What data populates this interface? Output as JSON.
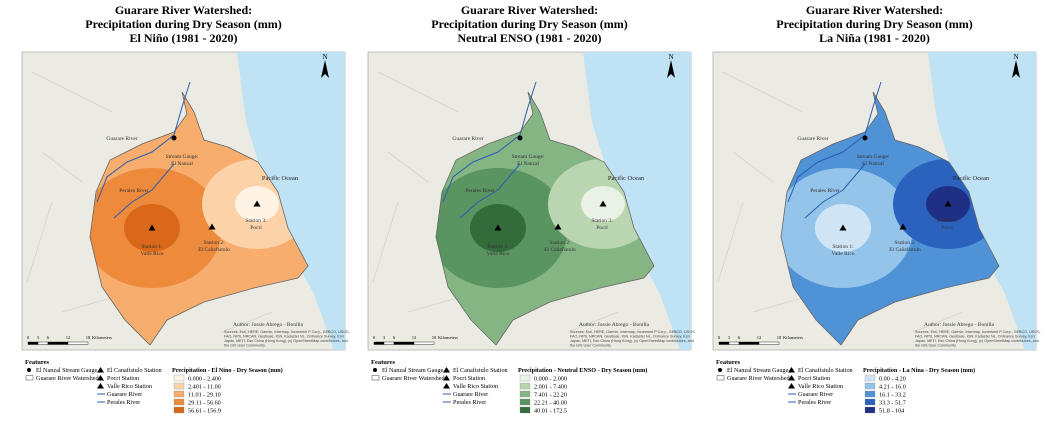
{
  "panels": [
    {
      "title": [
        "Guarare River Watershed:",
        "Precipitation during Dry Season (mm)",
        "El Niño (1981 - 2020)"
      ],
      "map": {
        "north": "N",
        "river_label": "Guarare River",
        "gauge_label": [
          "Stream Gauge:",
          "El Nanzal"
        ],
        "perales_label": "Perales River",
        "pocri_label": [
          "Station 3:",
          "Pocri"
        ],
        "valle_label": [
          "Station 1:",
          "Valle Rico"
        ],
        "canafistulo_label": [
          "Station 2:",
          "El Cañafistulo"
        ],
        "ocean_label": "Pacific Ocean",
        "author": "Author: Jossie Abrego - Bonilla",
        "sources": [
          "Sources: Esri, HERE, Garmin, Intermap, increment P Corp., GEBCO, USGS,",
          "FAO, NPS, NRCAN, GeoBase, IGN, Kadaster NL, Ordnance Survey, Esri",
          "Japan, METI, Esri China (Hong Kong), (c) OpenStreetMap contributors, and",
          "the GIS User Community"
        ],
        "scale": [
          "0",
          "3",
          "6",
          "12",
          "18",
          "Kilometers"
        ]
      },
      "legend": {
        "heading": "Features",
        "items": [
          "El Nanzal Stream Gauge",
          "Guarare River Watershed",
          "El Canafistulo Station",
          "Pocri Station",
          "Valle Rico Station",
          "Guarare River",
          "Perales River"
        ],
        "title": "Precipitation - El Nino - Dry Season (mm)",
        "classes": [
          {
            "label": "0.000 - 2.400",
            "color": "#fff3e6"
          },
          {
            "label": "2.401 - 11.00",
            "color": "#fcd3a8"
          },
          {
            "label": "11.01 - 29.10",
            "color": "#f6ad6d"
          },
          {
            "label": "29.11 - 56.60",
            "color": "#ee8a3c"
          },
          {
            "label": "56.61 - 156.9",
            "color": "#d9681a"
          }
        ]
      }
    },
    {
      "title": [
        "Guarare River Watershed:",
        "Precipitation during Dry Season (mm)",
        "Neutral ENSO (1981 - 2020)"
      ],
      "map": {
        "north": "N",
        "river_label": "Guarare River",
        "gauge_label": [
          "Stream Gauge:",
          "El Nanzal"
        ],
        "perales_label": "Perales River",
        "pocri_label": [
          "Station 3:",
          "Pocri"
        ],
        "valle_label": [
          "Station 1:",
          "Valle Rico"
        ],
        "canafistulo_label": [
          "Station 2:",
          "El Cañafistulo"
        ],
        "ocean_label": "Pacific Ocean",
        "author": "Author: Jossie Abrego - Bonilla",
        "sources": [
          "Sources: Esri, HERE, Garmin, Intermap, increment P Corp., GEBCO, USGS,",
          "FAO, NPS, NRCAN, GeoBase, IGN, Kadaster NL, Ordnance Survey, Esri",
          "Japan, METI, Esri China (Hong Kong), (c) OpenStreetMap contributors, and",
          "the GIS User Community"
        ],
        "scale": [
          "0",
          "3",
          "6",
          "12",
          "18",
          "Kilometers"
        ]
      },
      "legend": {
        "heading": "Features",
        "items": [
          "El Nanzal Stream Gauge",
          "Guarare River Watershed",
          "El Canafistulo Station",
          "Pocri Station",
          "Valle Rico Station",
          "Guarare River",
          "Perales River"
        ],
        "title": "Precipitation - Neutral ENSO - Dry Season (mm)",
        "classes": [
          {
            "label": "0.000 - 2.000",
            "color": "#e9f2e5"
          },
          {
            "label": "2.001 - 7.400",
            "color": "#b9d6b1"
          },
          {
            "label": "7.401 - 22.20",
            "color": "#86b584"
          },
          {
            "label": "22.21 - 40.00",
            "color": "#5a9460"
          },
          {
            "label": "40.01 - 172.5",
            "color": "#336b3b"
          }
        ]
      }
    },
    {
      "title": [
        "Guarare River Watershed:",
        "Precipitation during Dry Season (mm)",
        "La Niña (1981 - 2020)"
      ],
      "map": {
        "north": "N",
        "river_label": "Guarare River",
        "gauge_label": [
          "Stream Gauge:",
          "El Nanzal"
        ],
        "perales_label": "Perales River",
        "pocri_label": [
          "Station 3:",
          "Pocri"
        ],
        "valle_label": [
          "Station 1:",
          "Valle Rico"
        ],
        "canafistulo_label": [
          "Station 2:",
          "El Cañafistulo"
        ],
        "ocean_label": "Pacific Ocean",
        "author": "Author: Jossie Abrego - Bonilla",
        "sources": [
          "Sources: Esri, HERE, Garmin, Intermap, increment P Corp., GEBCO, USGS,",
          "FAO, NPS, NRCAN, GeoBase, IGN, Kadaster NL, Ordnance Survey, Esri",
          "Japan, METI, Esri China (Hong Kong), (c) OpenStreetMap contributors, and",
          "the GIS User Community"
        ],
        "scale": [
          "0",
          "3",
          "6",
          "12",
          "18",
          "Kilometers"
        ]
      },
      "legend": {
        "heading": "Features",
        "items": [
          "El Nanzal Stream Gauge",
          "Guarare River Watershed",
          "El Canafistulo Station",
          "Pocri Station",
          "Valle Rico Station",
          "Guarare River",
          "Perales River"
        ],
        "title": "Precipitation - La Nina - Dry Season (mm)",
        "classes": [
          {
            "label": "0.00 - 4.20",
            "color": "#cfe5f6"
          },
          {
            "label": "4.21 - 16.0",
            "color": "#94c4ea"
          },
          {
            "label": "16.1 - 33.2",
            "color": "#4f92d6"
          },
          {
            "label": "33.3 - 51.7",
            "color": "#2a62bd"
          },
          {
            "label": "51.8 - 104",
            "color": "#1f2f86"
          }
        ]
      }
    }
  ]
}
